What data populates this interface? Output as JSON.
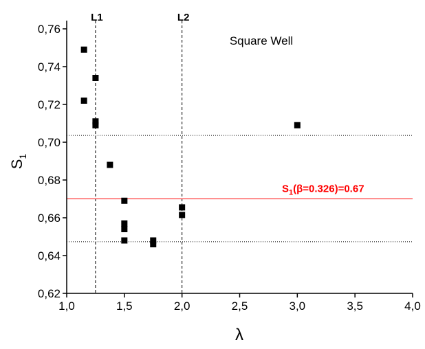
{
  "chart_data": {
    "type": "scatter",
    "title": "Square Well",
    "x_label": "λ",
    "y_label": {
      "text": "S",
      "sub": "1"
    },
    "color": "#000000",
    "x": [
      1.15,
      1.25,
      1.15,
      1.25,
      1.25,
      1.375,
      1.5,
      1.5,
      1.5,
      1.5,
      1.75,
      1.75,
      2.0,
      2.0,
      3.0
    ],
    "y": [
      0.749,
      0.734,
      0.722,
      0.711,
      0.709,
      0.688,
      0.669,
      0.657,
      0.654,
      0.648,
      0.648,
      0.646,
      0.6655,
      0.6615,
      0.709
    ],
    "xlim": [
      1.0,
      4.0
    ],
    "ylim": [
      0.62,
      0.76
    ],
    "xticks": [
      {
        "value": 1.0,
        "label": "1,0"
      },
      {
        "value": 1.5,
        "label": "1,5"
      },
      {
        "value": 2.0,
        "label": "2,0"
      },
      {
        "value": 2.5,
        "label": "2,5"
      },
      {
        "value": 3.0,
        "label": "3,0"
      },
      {
        "value": 3.5,
        "label": "3,5"
      },
      {
        "value": 4.0,
        "label": "4,0"
      }
    ],
    "yticks": [
      {
        "value": 0.62,
        "label": "0,62"
      },
      {
        "value": 0.64,
        "label": "0,64"
      },
      {
        "value": 0.66,
        "label": "0,66"
      },
      {
        "value": 0.68,
        "label": "0,68"
      },
      {
        "value": 0.7,
        "label": "0,70"
      },
      {
        "value": 0.72,
        "label": "0,72"
      },
      {
        "value": 0.74,
        "label": "0,74"
      },
      {
        "value": 0.76,
        "label": "0,76"
      }
    ],
    "vlines": [
      {
        "label": "L1",
        "value": 1.25
      },
      {
        "label": "L2",
        "value": 2.0
      }
    ],
    "hlines": [
      0.7036,
      0.6473
    ],
    "reference": {
      "value": 0.67,
      "color": "#ff0000",
      "text": "S",
      "sub": "1",
      "rest": "(β=0.326)=0.67"
    }
  }
}
